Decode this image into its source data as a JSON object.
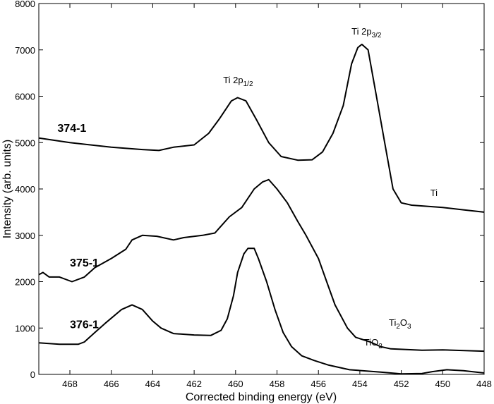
{
  "chart_data": {
    "type": "line",
    "title": "",
    "xlabel": "Corrected binding energy (eV)",
    "ylabel": "Intensity (arb. units)",
    "xlim": [
      469.5,
      448
    ],
    "x_reversed": true,
    "ylim": [
      0,
      8000
    ],
    "xticks": [
      468,
      466,
      464,
      462,
      460,
      458,
      456,
      454,
      452,
      450,
      448
    ],
    "yticks": [
      0,
      1000,
      2000,
      3000,
      4000,
      5000,
      6000,
      7000,
      8000
    ],
    "grid": false,
    "line_color": "#000000",
    "series": [
      {
        "name": "374-1",
        "x": [
          469.5,
          468,
          466,
          464.5,
          463.7,
          463,
          462,
          461.3,
          460.8,
          460.2,
          459.9,
          459.5,
          459,
          458.4,
          457.8,
          457,
          456.3,
          455.8,
          455.3,
          454.8,
          454.4,
          454.1,
          453.9,
          453.6,
          453.2,
          452.8,
          452.4,
          452,
          451.5,
          450,
          449,
          448
        ],
        "y": [
          5100,
          5000,
          4900,
          4850,
          4830,
          4900,
          4950,
          5200,
          5500,
          5900,
          5970,
          5900,
          5500,
          5000,
          4700,
          4620,
          4630,
          4800,
          5200,
          5800,
          6700,
          7050,
          7120,
          7000,
          6000,
          5000,
          4000,
          3700,
          3650,
          3600,
          3550,
          3500
        ]
      },
      {
        "name": "375-1",
        "x": [
          469.5,
          469.3,
          469,
          468.5,
          467.9,
          467.3,
          466.8,
          466,
          465.3,
          465,
          464.5,
          463.8,
          463,
          462.5,
          461.6,
          461,
          460.7,
          460.3,
          459.7,
          459.1,
          458.7,
          458.4,
          458,
          457.5,
          457,
          456.6,
          456,
          455.6,
          455.2,
          454.6,
          454.2,
          453.5,
          453,
          452.5,
          451,
          450,
          448
        ],
        "y": [
          2150,
          2200,
          2100,
          2100,
          2000,
          2100,
          2300,
          2500,
          2700,
          2900,
          3000,
          2980,
          2900,
          2950,
          3000,
          3050,
          3200,
          3400,
          3600,
          4000,
          4150,
          4200,
          4000,
          3700,
          3300,
          3000,
          2500,
          2000,
          1500,
          1000,
          800,
          700,
          600,
          550,
          520,
          530,
          500
        ]
      },
      {
        "name": "376-1",
        "x": [
          469.5,
          468.5,
          467.6,
          467.3,
          466.8,
          466.3,
          465.5,
          465,
          464.5,
          464,
          463.6,
          463,
          462,
          461.2,
          460.7,
          460.4,
          460.1,
          459.9,
          459.6,
          459.4,
          459.1,
          458.9,
          458.5,
          458.1,
          457.7,
          457.3,
          456.8,
          456.2,
          455.5,
          454.5,
          453,
          452,
          451,
          450.5,
          449.8,
          449,
          448
        ],
        "y": [
          680,
          650,
          650,
          700,
          900,
          1100,
          1400,
          1500,
          1400,
          1150,
          1000,
          880,
          850,
          840,
          950,
          1200,
          1700,
          2200,
          2600,
          2720,
          2720,
          2500,
          2000,
          1400,
          900,
          600,
          400,
          300,
          200,
          100,
          50,
          10,
          20,
          60,
          100,
          80,
          30
        ]
      }
    ],
    "annotations": [
      {
        "text": "374-1",
        "x": 468.6,
        "y": 5230,
        "bold": true
      },
      {
        "text": "375-1",
        "x": 468.0,
        "y": 2330,
        "bold": true
      },
      {
        "text": "376-1",
        "x": 468.0,
        "y": 1000,
        "bold": true
      },
      {
        "text": "Ti 2p",
        "sub": "1/2",
        "x": 460.6,
        "y": 6280
      },
      {
        "text": "Ti 2p",
        "sub": "3/2",
        "x": 454.4,
        "y": 7330
      },
      {
        "text": "Ti",
        "sub": "",
        "x": 450.6,
        "y": 3850
      },
      {
        "text": "Ti",
        "sub": "2",
        "tail": "O",
        "sub2": "3",
        "x": 452.6,
        "y": 1050
      },
      {
        "text": "TiO",
        "sub": "2",
        "x": 453.8,
        "y": 620
      }
    ]
  }
}
